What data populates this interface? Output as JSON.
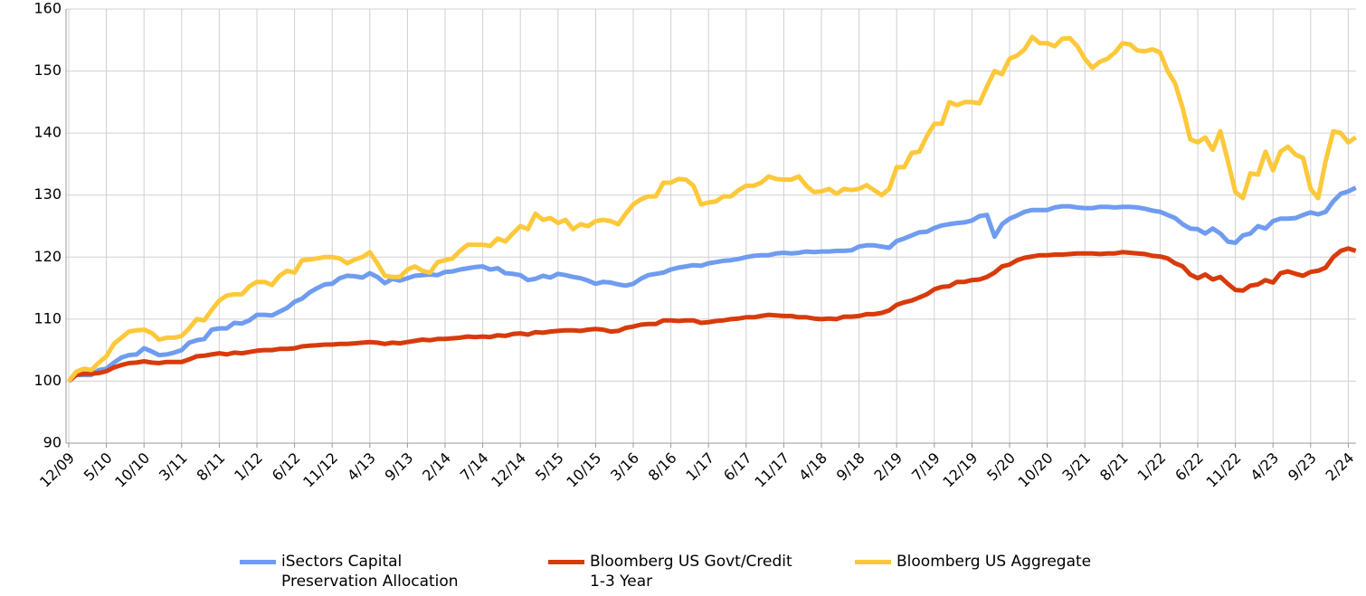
{
  "chart_data": {
    "type": "line",
    "categories": [
      "12/09",
      null,
      null,
      null,
      null,
      "5/10",
      null,
      null,
      null,
      null,
      "10/10",
      null,
      null,
      null,
      null,
      "3/11",
      null,
      null,
      null,
      null,
      "8/11",
      null,
      null,
      null,
      null,
      "1/12",
      null,
      null,
      null,
      null,
      "6/12",
      null,
      null,
      null,
      null,
      "11/12",
      null,
      null,
      null,
      null,
      "4/13",
      null,
      null,
      null,
      null,
      "9/13",
      null,
      null,
      null,
      null,
      "2/14",
      null,
      null,
      null,
      null,
      "7/14",
      null,
      null,
      null,
      null,
      "12/14",
      null,
      null,
      null,
      null,
      "5/15",
      null,
      null,
      null,
      null,
      "10/15",
      null,
      null,
      null,
      null,
      "3/16",
      null,
      null,
      null,
      null,
      "8/16",
      null,
      null,
      null,
      null,
      "1/17",
      null,
      null,
      null,
      null,
      "6/17",
      null,
      null,
      null,
      null,
      "11/17",
      null,
      null,
      null,
      null,
      "4/18",
      null,
      null,
      null,
      null,
      "9/18",
      null,
      null,
      null,
      null,
      "2/19",
      null,
      null,
      null,
      null,
      "7/19",
      null,
      null,
      null,
      null,
      "12/19",
      null,
      null,
      null,
      null,
      "5/20",
      null,
      null,
      null,
      null,
      "10/20",
      null,
      null,
      null,
      null,
      "3/21",
      null,
      null,
      null,
      null,
      "8/21",
      null,
      null,
      null,
      null,
      "1/22",
      null,
      null,
      null,
      null,
      "6/22",
      null,
      null,
      null,
      null,
      "11/22",
      null,
      null,
      null,
      null,
      "4/23",
      null,
      null,
      null,
      null,
      "9/23",
      null,
      null,
      null,
      null,
      "2/24",
      null
    ],
    "series": [
      {
        "name": "iSectors Capital Preservation Allocation",
        "color": "#6f9cf0",
        "values": [
          100,
          101,
          101,
          101,
          101.8,
          102,
          103,
          103.8,
          104.2,
          104.3,
          105.3,
          104.8,
          104.2,
          104.3,
          104.6,
          105,
          106.2,
          106.6,
          106.8,
          108.3,
          108.5,
          108.5,
          109.4,
          109.3,
          109.8,
          110.7,
          110.7,
          110.6,
          111.2,
          111.8,
          112.8,
          113.3,
          114.3,
          115,
          115.6,
          115.7,
          116.6,
          117,
          116.9,
          116.7,
          117.4,
          116.8,
          115.8,
          116.5,
          116.2,
          116.6,
          117,
          117.1,
          117.2,
          117.1,
          117.6,
          117.7,
          118,
          118.2,
          118.4,
          118.5,
          118,
          118.2,
          117.4,
          117.3,
          117.1,
          116.3,
          116.5,
          117,
          116.7,
          117.3,
          117.1,
          116.8,
          116.6,
          116.2,
          115.7,
          116,
          115.9,
          115.6,
          115.4,
          115.7,
          116.5,
          117.1,
          117.3,
          117.5,
          118,
          118.3,
          118.5,
          118.7,
          118.6,
          119,
          119.2,
          119.4,
          119.5,
          119.7,
          120,
          120.2,
          120.3,
          120.3,
          120.6,
          120.7,
          120.6,
          120.7,
          120.9,
          120.8,
          120.9,
          120.9,
          121,
          121,
          121.1,
          121.7,
          121.9,
          121.9,
          121.7,
          121.5,
          122.6,
          123,
          123.5,
          124,
          124.1,
          124.7,
          125.1,
          125.3,
          125.5,
          125.6,
          125.9,
          126.6,
          126.8,
          123.3,
          125.3,
          126.2,
          126.7,
          127.3,
          127.6,
          127.6,
          127.6,
          128,
          128.2,
          128.2,
          128,
          127.9,
          127.9,
          128.1,
          128.1,
          128,
          128.1,
          128.1,
          128,
          127.8,
          127.5,
          127.3,
          126.8,
          126.3,
          125.3,
          124.6,
          124.5,
          123.8,
          124.6,
          123.8,
          122.5,
          122.3,
          123.5,
          123.8,
          125,
          124.6,
          125.8,
          126.2,
          126.2,
          126.3,
          126.8,
          127.2,
          126.9,
          127.3,
          129,
          130.2,
          130.6,
          131.2
        ]
      },
      {
        "name": "Bloomberg US Govt/Credit 1-3 Year",
        "color": "#d83b0b",
        "values": [
          100,
          101,
          101.2,
          101.2,
          101.3,
          101.6,
          102.2,
          102.6,
          102.9,
          103,
          103.2,
          103,
          102.9,
          103.1,
          103.1,
          103.1,
          103.5,
          104,
          104.1,
          104.3,
          104.5,
          104.3,
          104.6,
          104.5,
          104.7,
          104.9,
          105,
          105,
          105.2,
          105.2,
          105.3,
          105.6,
          105.7,
          105.8,
          105.9,
          105.9,
          106,
          106,
          106.1,
          106.2,
          106.3,
          106.2,
          106,
          106.2,
          106.1,
          106.3,
          106.5,
          106.7,
          106.6,
          106.8,
          106.8,
          106.9,
          107,
          107.2,
          107.1,
          107.2,
          107.1,
          107.4,
          107.3,
          107.6,
          107.7,
          107.5,
          107.9,
          107.8,
          108,
          108.1,
          108.2,
          108.2,
          108.1,
          108.3,
          108.4,
          108.3,
          108,
          108.1,
          108.6,
          108.8,
          109.1,
          109.2,
          109.2,
          109.8,
          109.8,
          109.7,
          109.8,
          109.8,
          109.4,
          109.5,
          109.7,
          109.8,
          110,
          110.1,
          110.3,
          110.3,
          110.5,
          110.7,
          110.6,
          110.5,
          110.5,
          110.3,
          110.3,
          110.1,
          110,
          110.1,
          110,
          110.4,
          110.4,
          110.5,
          110.8,
          110.8,
          111,
          111.4,
          112.3,
          112.7,
          113,
          113.5,
          114,
          114.8,
          115.2,
          115.3,
          116,
          116,
          116.3,
          116.4,
          116.8,
          117.5,
          118.5,
          118.8,
          119.5,
          119.9,
          120.1,
          120.3,
          120.3,
          120.4,
          120.4,
          120.5,
          120.6,
          120.6,
          120.6,
          120.5,
          120.6,
          120.6,
          120.8,
          120.7,
          120.6,
          120.5,
          120.2,
          120.1,
          119.8,
          119,
          118.5,
          117.2,
          116.6,
          117.2,
          116.4,
          116.8,
          115.7,
          114.7,
          114.6,
          115.4,
          115.6,
          116.3,
          115.9,
          117.4,
          117.7,
          117.3,
          117,
          117.6,
          117.8,
          118.3,
          120,
          121,
          121.4,
          121
        ]
      },
      {
        "name": "Bloomberg US Aggregate",
        "color": "#fdc83a",
        "values": [
          100,
          101.5,
          102,
          101.8,
          103,
          104,
          106,
          107,
          108,
          108.2,
          108.3,
          107.8,
          106.7,
          107,
          107,
          107.3,
          108.5,
          110,
          109.8,
          111.5,
          113,
          113.8,
          114,
          114,
          115.3,
          116,
          116,
          115.5,
          117,
          117.8,
          117.5,
          119.5,
          119.6,
          119.8,
          120,
          120,
          119.8,
          119,
          119.6,
          120,
          120.8,
          119,
          117,
          116.8,
          116.8,
          118,
          118.5,
          117.8,
          117.5,
          119.2,
          119.5,
          119.8,
          121,
          122,
          122,
          122,
          121.8,
          123,
          122.5,
          123.8,
          125,
          124.5,
          127,
          126,
          126.3,
          125.5,
          126,
          124.5,
          125.3,
          125,
          125.8,
          126,
          125.8,
          125.3,
          127,
          128.5,
          129.3,
          129.8,
          129.8,
          132,
          132,
          132.6,
          132.5,
          131.5,
          128.5,
          128.8,
          129,
          129.8,
          129.8,
          130.8,
          131.5,
          131.5,
          132,
          133,
          132.6,
          132.5,
          132.5,
          133,
          131.5,
          130.5,
          130.6,
          131,
          130.2,
          131,
          130.8,
          131,
          131.6,
          130.8,
          130,
          131,
          134.5,
          134.5,
          136.8,
          137,
          139.5,
          141.5,
          141.5,
          145,
          144.5,
          145,
          145,
          144.8,
          147.5,
          150,
          149.5,
          152,
          152.5,
          153.5,
          155.5,
          154.5,
          154.5,
          154,
          155.2,
          155.3,
          154,
          152,
          150.5,
          151.5,
          152,
          153,
          154.5,
          154.3,
          153.3,
          153.2,
          153.5,
          153,
          150,
          148,
          144,
          139,
          138.5,
          139.3,
          137.3,
          140.3,
          135.5,
          130.5,
          129.5,
          133.5,
          133.3,
          137,
          134,
          137,
          137.8,
          136.5,
          136,
          131,
          129.5,
          135.5,
          140.3,
          140,
          138.5,
          139.3
        ]
      }
    ],
    "ylim": [
      90,
      160
    ],
    "yticks": [
      90,
      100,
      110,
      120,
      130,
      140,
      150,
      160
    ],
    "grid": true
  }
}
